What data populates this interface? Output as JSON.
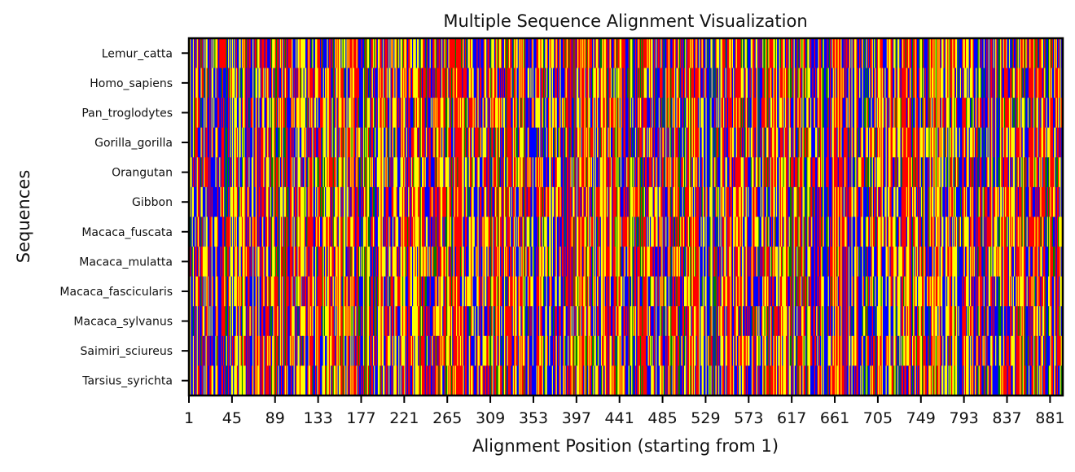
{
  "chart_data": {
    "type": "heatmap",
    "title": "Multiple Sequence Alignment Visualization",
    "xlabel": "Alignment Position (starting from 1)",
    "ylabel": "Sequences",
    "sequences": [
      "Lemur_catta",
      "Homo_sapiens",
      "Pan_troglodytes",
      "Gorilla_gorilla",
      "Orangutan",
      "Gibbon",
      "Macaca_fuscata",
      "Macaca_mulatta",
      "Macaca_fascicularis",
      "Macaca_sylvanus",
      "Saimiri_sciureus",
      "Tarsius_syrichta"
    ],
    "x_ticks": [
      "1",
      "45",
      "89",
      "133",
      "177",
      "221",
      "265",
      "309",
      "353",
      "397",
      "441",
      "485",
      "529",
      "573",
      "617",
      "661",
      "705",
      "749",
      "793",
      "837",
      "881"
    ],
    "alignment_length": 893,
    "nucleotide_colors": {
      "A": "#ff0000",
      "C": "#0000ff",
      "G": "#ffff00",
      "T": "#008000"
    },
    "grid": false
  }
}
